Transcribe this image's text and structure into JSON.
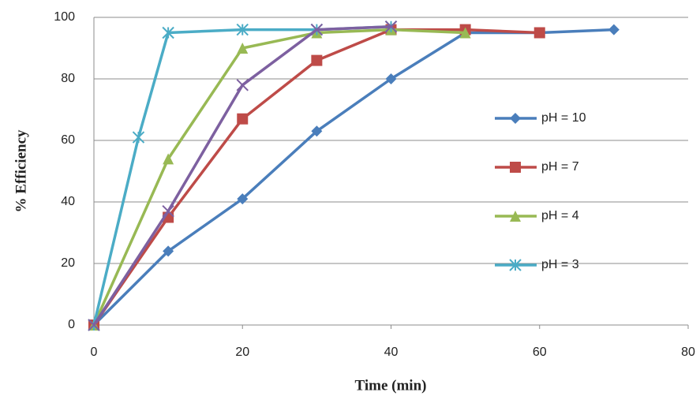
{
  "chart_data": {
    "type": "line",
    "x_label": "Time (min)",
    "y_label": "% Efficiency",
    "xlim": [
      0,
      80
    ],
    "xticks": [
      0,
      20,
      40,
      60,
      80
    ],
    "ylim": [
      0,
      100
    ],
    "yticks": [
      0,
      20,
      40,
      60,
      80,
      100
    ],
    "grid": true,
    "legend": "right",
    "series": [
      {
        "name": "pH = 10",
        "color": "#4a7ebb",
        "marker": "diamond",
        "x": [
          0,
          10,
          20,
          30,
          40,
          50,
          60,
          70
        ],
        "values": [
          0,
          24,
          41,
          63,
          80,
          95,
          95,
          96
        ]
      },
      {
        "name": "pH = 7",
        "color": "#be4b48",
        "marker": "square",
        "x": [
          0,
          10,
          20,
          30,
          40,
          50,
          60
        ],
        "values": [
          0,
          35,
          67,
          86,
          96,
          96,
          95
        ]
      },
      {
        "name": "pH = 4",
        "color": "#98b954",
        "marker": "triangle",
        "x": [
          0,
          10,
          20,
          30,
          40,
          50
        ],
        "values": [
          0,
          54,
          90,
          95,
          96,
          95
        ]
      },
      {
        "name": "pH = 3",
        "color": "#4bacc6",
        "marker": "star",
        "x": [
          0,
          6,
          10,
          20,
          30,
          40
        ],
        "values": [
          0,
          61,
          95,
          96,
          96,
          97
        ]
      },
      {
        "color": "#7d60a0",
        "marker": "cross",
        "x": [
          0,
          10,
          20,
          30,
          40
        ],
        "values": [
          0,
          37,
          78,
          96,
          97
        ]
      }
    ]
  }
}
